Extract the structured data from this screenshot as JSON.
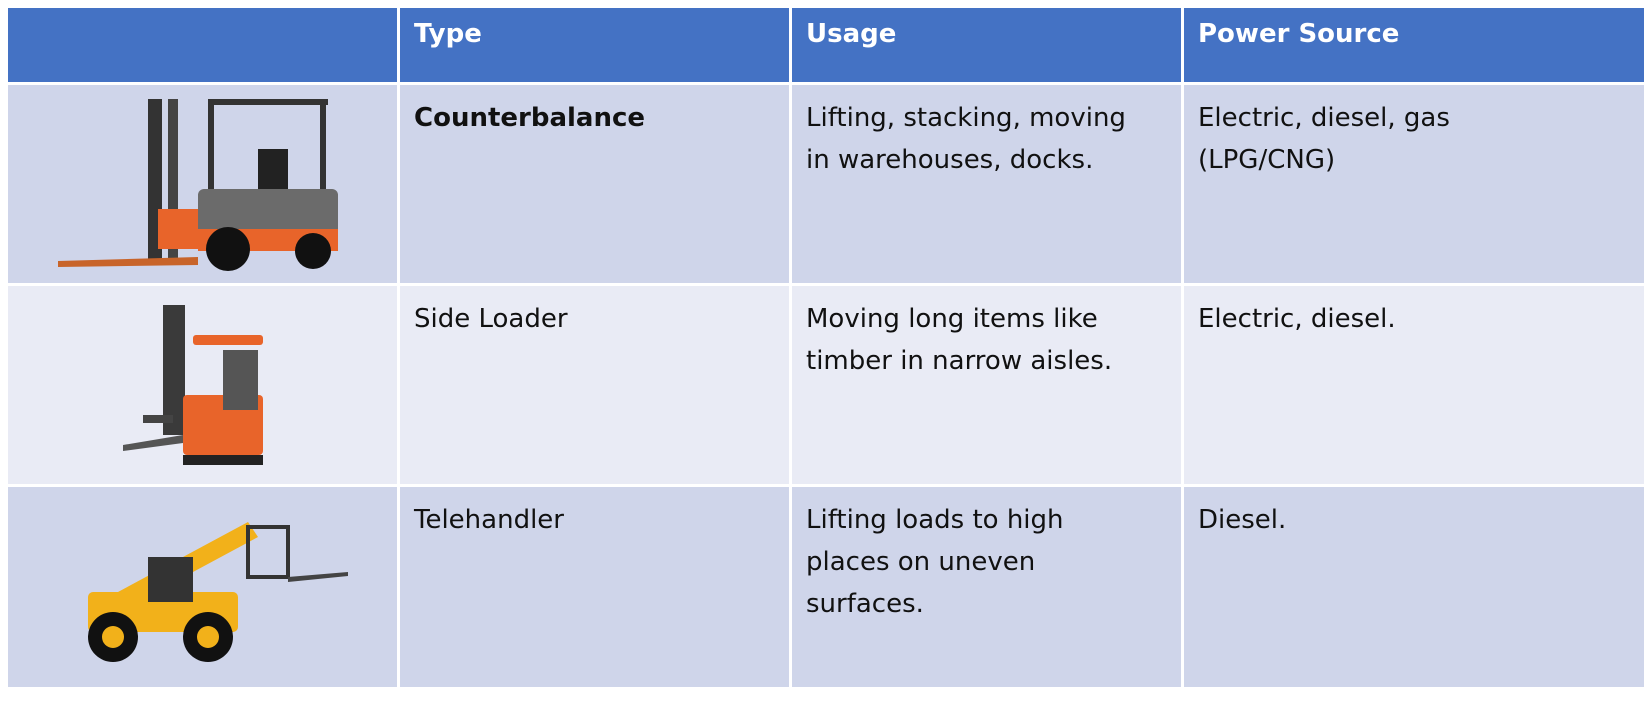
{
  "table": {
    "header": [
      "Type",
      "Usage",
      "Power Source"
    ],
    "rows": [
      {
        "type": "Counterbalance",
        "usage": [
          "Lifting, stacking, moving",
          "in warehouses, docks."
        ],
        "power": [
          "Electric, diesel, gas",
          "(LPG/CNG)"
        ]
      },
      {
        "type": "Side Loader",
        "usage": [
          "Moving long items like",
          "timber in narrow aisles."
        ],
        "power": [
          "Electric, diesel."
        ]
      },
      {
        "type": "Telehandler",
        "usage": [
          "Lifting loads to high",
          "places on uneven",
          "surfaces."
        ],
        "power": [
          "Diesel."
        ]
      }
    ]
  }
}
